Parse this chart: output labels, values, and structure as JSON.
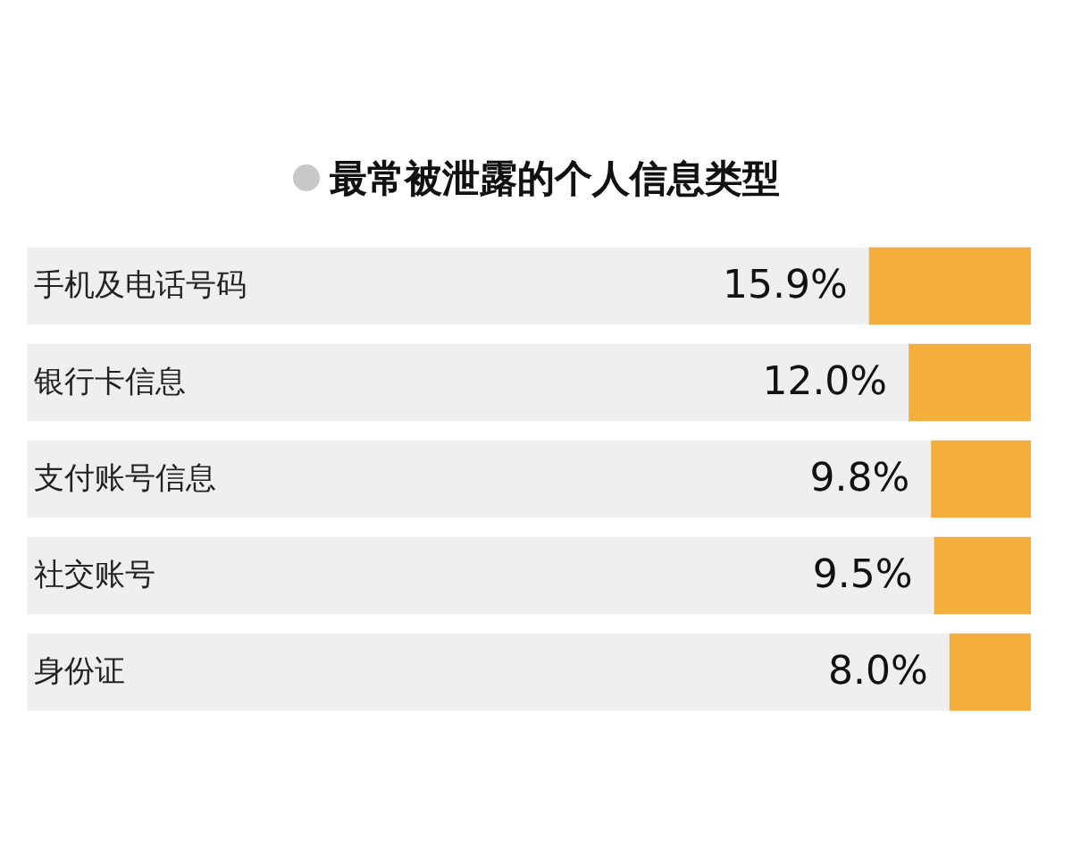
{
  "chart_data": {
    "type": "bar",
    "orientation": "horizontal",
    "title": "最常被泄露的个人信息类型",
    "categories": [
      "手机及电话号码",
      "银行卡信息",
      "支付账号信息",
      "社交账号",
      "身份证"
    ],
    "values": [
      15.9,
      12.0,
      9.8,
      9.5,
      8.0
    ],
    "value_labels": [
      "15.9%",
      "12.0%",
      "9.8%",
      "9.5%",
      "8.0%"
    ],
    "color": "#f4ae3c"
  }
}
